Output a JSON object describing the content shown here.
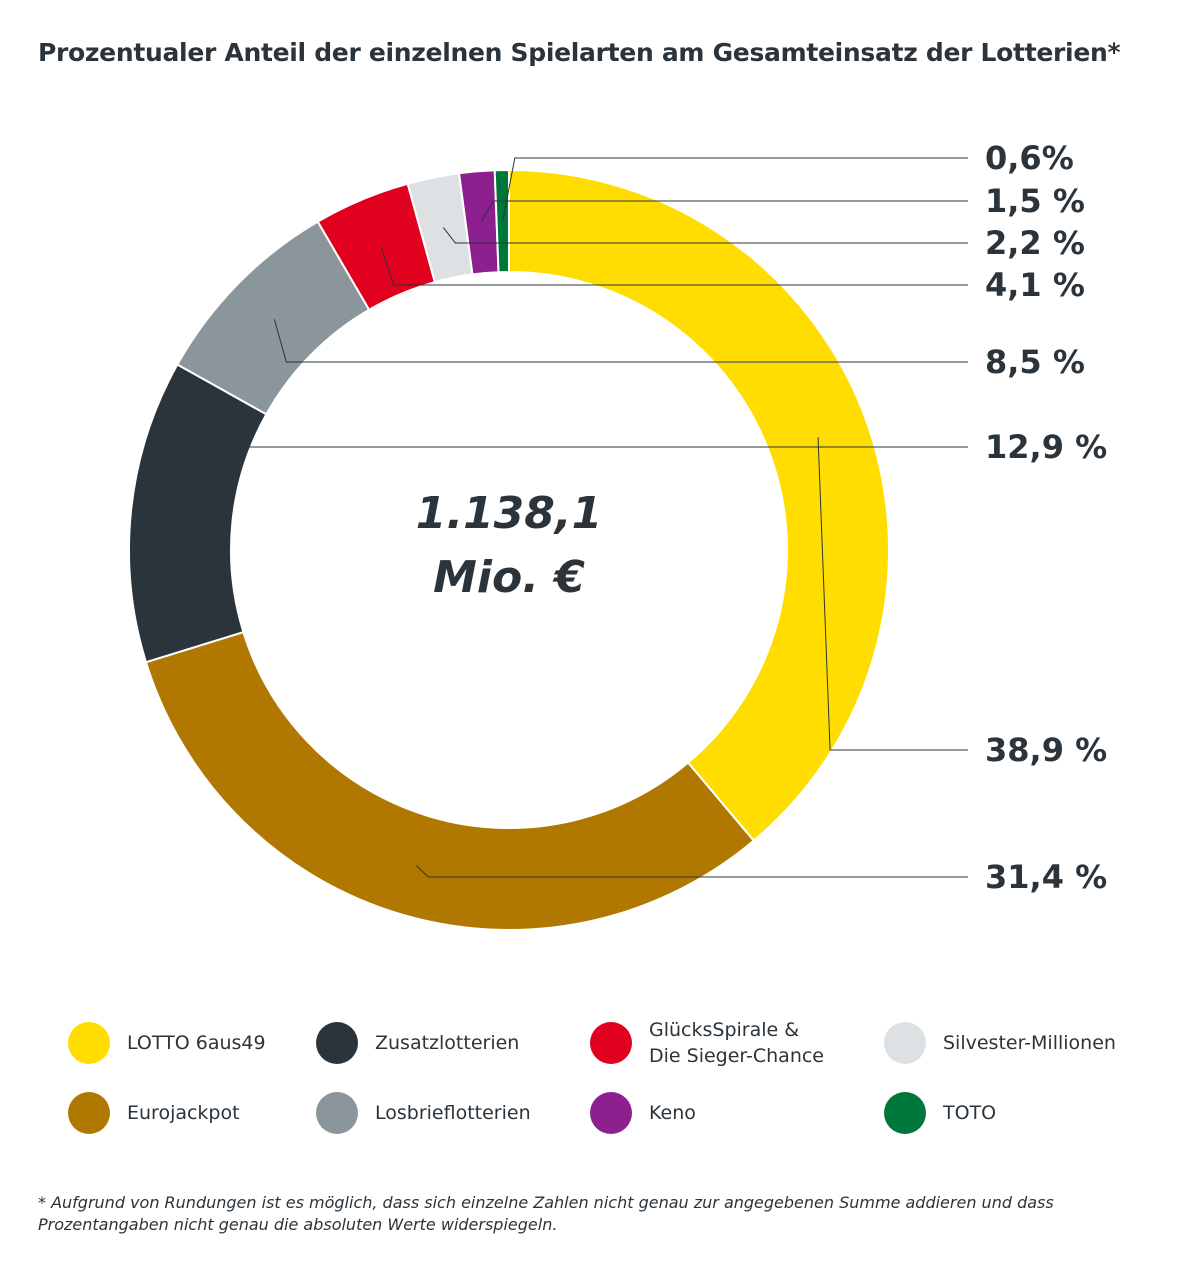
{
  "chart_data": {
    "type": "pie",
    "title": "Prozentualer Anteil der einzelnen Spielarten am Gesamteinsatz der Lotterien*",
    "center_label": [
      "1.138,1",
      "Mio. €"
    ],
    "slices": [
      {
        "name": "LOTTO 6aus49",
        "value": 38.9,
        "label": "38,9 %",
        "color": "#FFDD00"
      },
      {
        "name": "Eurojackpot",
        "value": 31.4,
        "label": "31,4 %",
        "color": "#B07800"
      },
      {
        "name": "Zusatzlotterien",
        "value": 12.9,
        "label": "12,9 %",
        "color": "#2B343B"
      },
      {
        "name": "Losbrieflotterien",
        "value": 8.5,
        "label": "8,5 %",
        "color": "#8A959C"
      },
      {
        "name": "GlücksSpirale & Die Sieger-Chance",
        "value": 4.1,
        "label": "4,1 %",
        "color": "#E1001E"
      },
      {
        "name": "Silvester-Millionen",
        "value": 2.2,
        "label": "2,2 %",
        "color": "#DDE1E4"
      },
      {
        "name": "Keno",
        "value": 1.5,
        "label": "1,5 %",
        "color": "#8E1F8E"
      },
      {
        "name": "TOTO",
        "value": 0.6,
        "label": "0,6%",
        "color": "#00773A"
      }
    ],
    "legend": [
      {
        "label": "LOTTO 6aus49",
        "color": "#FFDD00"
      },
      {
        "label": "Zusatzlotterien",
        "color": "#2B343B"
      },
      {
        "label": "GlücksSpirale &\nDie Sieger-Chance",
        "color": "#E1001E"
      },
      {
        "label": "Silvester-Millionen",
        "color": "#DDE1E4"
      },
      {
        "label": "Eurojackpot",
        "color": "#B07800"
      },
      {
        "label": "Losbrieflotterien",
        "color": "#8A959C"
      },
      {
        "label": "Keno",
        "color": "#8E1F8E"
      },
      {
        "label": "TOTO",
        "color": "#00773A"
      }
    ],
    "legend_placement": "bottom"
  },
  "footnote": "* Aufgrund von Rundungen ist es möglich, dass sich einzelne Zahlen nicht genau zur angegebenen Summe addieren und dass Prozentangaben nicht genau die absoluten Werte widerspiegeln."
}
